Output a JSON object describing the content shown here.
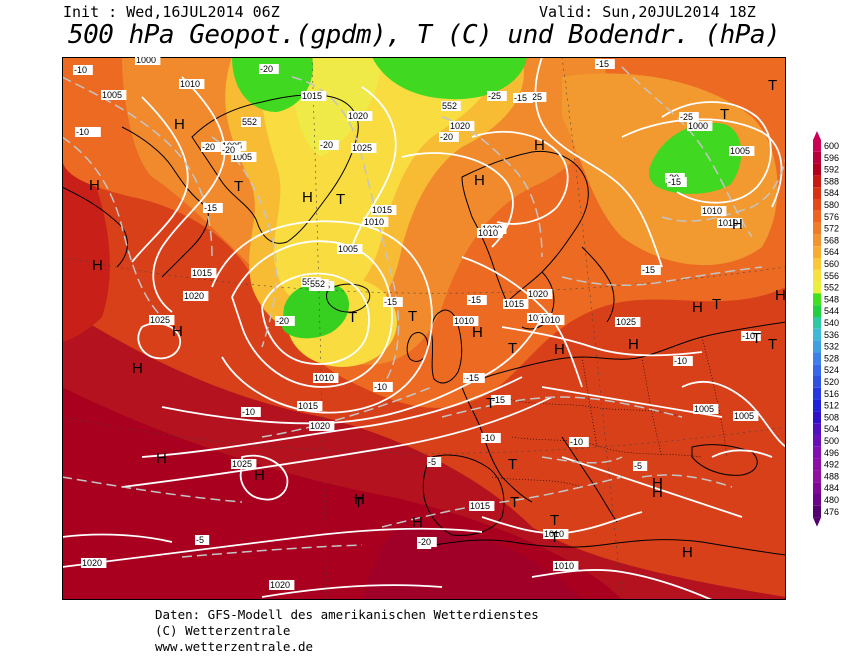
{
  "header": {
    "init": "Init : Wed,16JUL2014 06Z",
    "valid": "Valid: Sun,20JUL2014 18Z",
    "title": "500 hPa Geopot.(gpdm), T (C) und Bodendr. (hPa)"
  },
  "footer": {
    "line1": "Daten: GFS-Modell des amerikanischen Wetterdienstes",
    "line2": "(C) Wetterzentrale",
    "line3": "www.wetterzentrale.de"
  },
  "colors": {
    "background_land_outline": "#000000",
    "isobar": "#ffffff",
    "isotherm": "#bbbbbb",
    "deep_red": "#a8001e",
    "red": "#c8241c",
    "orange_red": "#e0461e",
    "orange": "#f07a28",
    "yellow_orange": "#f8b030",
    "yellow": "#f8e040",
    "green": "#40e020"
  },
  "legend": {
    "values": [
      "600",
      "596",
      "592",
      "588",
      "584",
      "580",
      "576",
      "572",
      "568",
      "564",
      "560",
      "556",
      "552",
      "548",
      "544",
      "540",
      "536",
      "532",
      "528",
      "524",
      "520",
      "516",
      "512",
      "508",
      "504",
      "500",
      "496",
      "492",
      "488",
      "484",
      "480",
      "476"
    ],
    "colors": [
      "#cc0055",
      "#b8003a",
      "#b4001e",
      "#c81a14",
      "#d83214",
      "#e44a18",
      "#ec6420",
      "#f07c28",
      "#f49430",
      "#f8ac34",
      "#f8c838",
      "#f8e040",
      "#e8f040",
      "#40e020",
      "#20d040",
      "#30c8a0",
      "#40b8d8",
      "#40a0e0",
      "#3c80e8",
      "#3868e8",
      "#3050e0",
      "#2838e0",
      "#2020d8",
      "#3010c8",
      "#5010c0",
      "#6810b8",
      "#8010b0",
      "#8c10a8",
      "#9010a0",
      "#800898",
      "#6a0488",
      "#500070"
    ]
  },
  "pressure_labels": [
    "1000",
    "1005",
    "1010",
    "1015",
    "1020",
    "1025"
  ],
  "map_labels": {
    "isobars": [
      {
        "text": "1000"
      },
      {
        "text": "1005"
      },
      {
        "text": "1010"
      },
      {
        "text": "1005"
      },
      {
        "text": "1015"
      },
      {
        "text": "1005"
      },
      {
        "text": "1020"
      },
      {
        "text": "1025"
      },
      {
        "text": "1020"
      },
      {
        "text": "1025"
      },
      {
        "text": "1015"
      },
      {
        "text": "1010"
      },
      {
        "text": "1005"
      },
      {
        "text": "1005"
      },
      {
        "text": "1020"
      },
      {
        "text": "1010"
      },
      {
        "text": "1015"
      },
      {
        "text": "1020"
      },
      {
        "text": "1025"
      },
      {
        "text": "1010"
      },
      {
        "text": "1015"
      },
      {
        "text": "1020"
      },
      {
        "text": "1025"
      },
      {
        "text": "1010"
      },
      {
        "text": "1020"
      },
      {
        "text": "1015"
      },
      {
        "text": "1010"
      },
      {
        "text": "1010"
      },
      {
        "text": "1005"
      },
      {
        "text": "1005"
      },
      {
        "text": "1025"
      },
      {
        "text": "1015"
      },
      {
        "text": "1010"
      },
      {
        "text": "1010"
      },
      {
        "text": "1020"
      },
      {
        "text": "1020"
      },
      {
        "text": "1000"
      },
      {
        "text": "1005"
      },
      {
        "text": "1010"
      },
      {
        "text": "1025"
      }
    ],
    "isotherms": [
      {
        "text": "-10"
      },
      {
        "text": "-10"
      },
      {
        "text": "-10"
      },
      {
        "text": "-20"
      },
      {
        "text": "-20"
      },
      {
        "text": "-20"
      },
      {
        "text": "-15"
      },
      {
        "text": "-20"
      },
      {
        "text": "-20"
      },
      {
        "text": "-25"
      },
      {
        "text": "-15"
      },
      {
        "text": "-20"
      },
      {
        "text": "-15"
      },
      {
        "text": "-15"
      },
      {
        "text": "-15"
      },
      {
        "text": "-10"
      },
      {
        "text": "-10"
      },
      {
        "text": "-10"
      },
      {
        "text": "-15"
      },
      {
        "text": "-15"
      },
      {
        "text": "-10"
      },
      {
        "text": "-10"
      },
      {
        "text": "-5"
      },
      {
        "text": "-5"
      },
      {
        "text": "-5"
      },
      {
        "text": "-5"
      },
      {
        "text": "-20"
      },
      {
        "text": "-25"
      },
      {
        "text": "-20"
      },
      {
        "text": "-15"
      },
      {
        "text": "-15"
      },
      {
        "text": "-10"
      },
      {
        "text": "-15"
      }
    ],
    "heights": [
      {
        "text": "552"
      },
      {
        "text": "552"
      },
      {
        "text": "552"
      },
      {
        "text": "552"
      }
    ],
    "centers": [
      {
        "text": "H"
      },
      {
        "text": "T"
      },
      {
        "text": "H"
      },
      {
        "text": "H"
      },
      {
        "text": "T"
      },
      {
        "text": "H"
      },
      {
        "text": "T"
      },
      {
        "text": "T"
      },
      {
        "text": "H"
      },
      {
        "text": "H"
      },
      {
        "text": "H"
      },
      {
        "text": "H"
      },
      {
        "text": "T"
      },
      {
        "text": "H"
      },
      {
        "text": "T"
      },
      {
        "text": "H"
      },
      {
        "text": "H"
      },
      {
        "text": "T"
      },
      {
        "text": "H"
      },
      {
        "text": "H"
      },
      {
        "text": "T"
      },
      {
        "text": "H"
      },
      {
        "text": "T"
      },
      {
        "text": "T"
      },
      {
        "text": "T"
      },
      {
        "text": "H"
      },
      {
        "text": "T"
      },
      {
        "text": "H"
      },
      {
        "text": "H"
      },
      {
        "text": "H"
      },
      {
        "text": "T"
      },
      {
        "text": "H"
      },
      {
        "text": "T"
      },
      {
        "text": "H"
      },
      {
        "text": "T"
      },
      {
        "text": "H"
      },
      {
        "text": "H"
      },
      {
        "text": "T"
      }
    ]
  }
}
